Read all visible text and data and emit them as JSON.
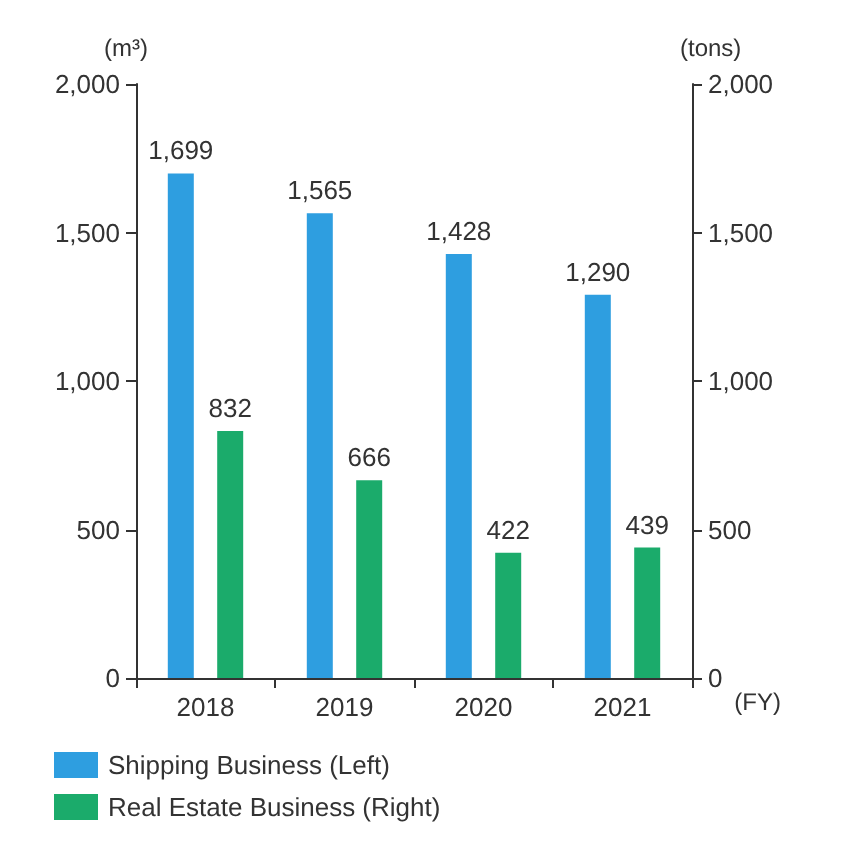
{
  "chart_data": {
    "type": "bar",
    "categories": [
      "2018",
      "2019",
      "2020",
      "2021"
    ],
    "xlabel": "(FY)",
    "ylabel": "(m³)",
    "y2label": "(tons)",
    "series": [
      {
        "name": "Shipping Business (Left)",
        "color": "#2e9ee0",
        "values": [
          1699,
          1565,
          1428,
          1290
        ],
        "value_labels": [
          "1,699",
          "1,565",
          "1,428",
          "1,290"
        ]
      },
      {
        "name": "Real Estate Business (Right)",
        "color": "#1bab6b",
        "values": [
          832,
          666,
          422,
          439
        ],
        "value_labels": [
          "832",
          "666",
          "422",
          "439"
        ],
        "axis": "y2"
      }
    ],
    "ylim": [
      0,
      2000
    ],
    "yticks": [
      {
        "value": 0,
        "label": "0"
      },
      {
        "value": 500,
        "label": "500"
      },
      {
        "value": 1000,
        "label": "1,000"
      },
      {
        "value": 1500,
        "label": "1,500"
      },
      {
        "value": 2000,
        "label": "2,000"
      }
    ],
    "y2lim": [
      0,
      2000
    ],
    "y2ticks": [
      {
        "value": 0,
        "label": "0"
      },
      {
        "value": 500,
        "label": "500"
      },
      {
        "value": 1000,
        "label": "1,000"
      },
      {
        "value": 1500,
        "label": "1,500"
      },
      {
        "value": 2000,
        "label": "2,000"
      }
    ],
    "grid": false,
    "legend": "bottom left"
  }
}
